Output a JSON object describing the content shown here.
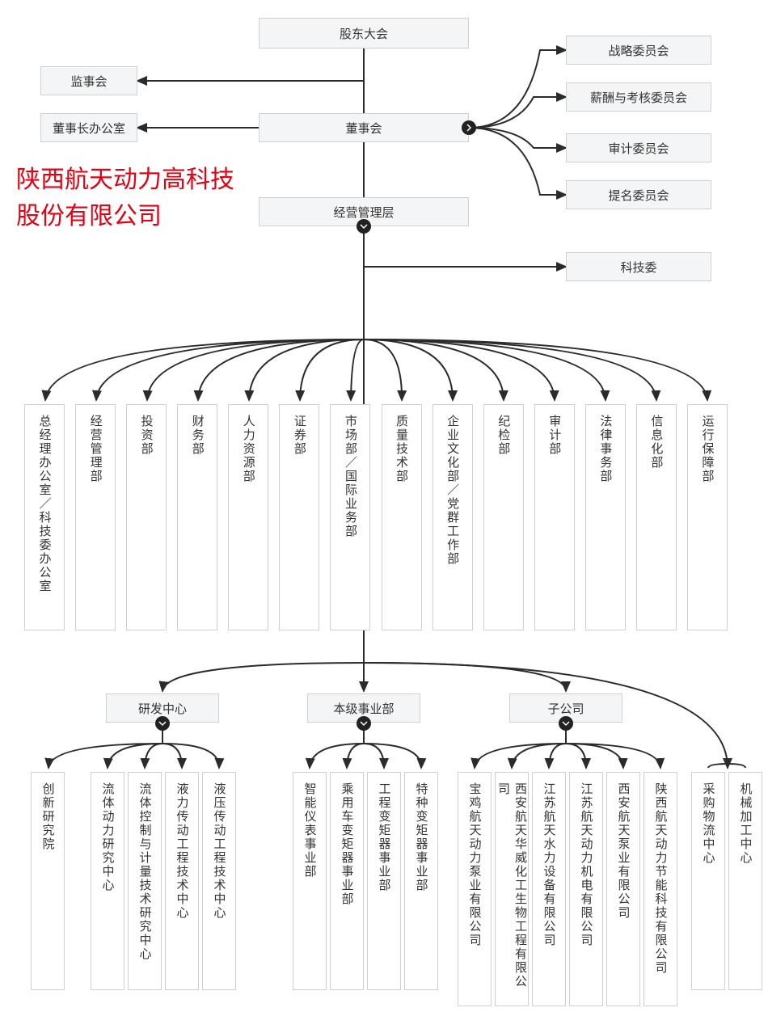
{
  "watermark": "陕西航天动力高科技股份有限公司",
  "colors": {
    "node_bg": "#f4f5f6",
    "node_border": "#d0d0d0",
    "line": "#2b2b2b",
    "text": "#333333",
    "watermark": "#e60012",
    "background": "#ffffff"
  },
  "line_width": 2,
  "font_size": 15,
  "watermark_fontsize": 30,
  "top_nodes": {
    "shareholders": "股东大会",
    "supervisors": "监事会",
    "chairman_office": "董事长办公室",
    "board": "董事会",
    "management": "经营管理层",
    "tech_committee": "科技委"
  },
  "board_committees": [
    "战略委员会",
    "薪酬与考核委员会",
    "审计委员会",
    "提名委员会"
  ],
  "departments": [
    "总经理办公室／科技委办公室",
    "经营管理部",
    "投资部",
    "财务部",
    "人力资源部",
    "证券部",
    "市场部／国际业务部",
    "质量技术部",
    "企业文化部／党群工作部",
    "纪检部",
    "审计部",
    "法律事务部",
    "信息化部",
    "运行保障部"
  ],
  "lower_groups": {
    "rd_center": "研发中心",
    "business_units": "本级事业部",
    "subsidiaries": "子公司"
  },
  "rd_side": "创新研究院",
  "rd_children": [
    "流体动力研究中心",
    "流体控制与计量技术研究中心",
    "液力传动工程技术中心",
    "液压传动工程技术中心"
  ],
  "bu_children": [
    "智能仪表事业部",
    "乘用车变矩器事业部",
    "工程变矩器事业部",
    "特种变矩器事业部"
  ],
  "sub_children": [
    "宝鸡航天动力泵业有限公司",
    "西安航天华威化工生物工程有限公司",
    "江苏航天水力设备有限公司",
    "江苏航天动力机电有限公司",
    "西安航天泵业有限公司",
    "陕西航天动力节能科技有限公司"
  ],
  "right_side": [
    "采购物流中心",
    "机械加工中心"
  ]
}
